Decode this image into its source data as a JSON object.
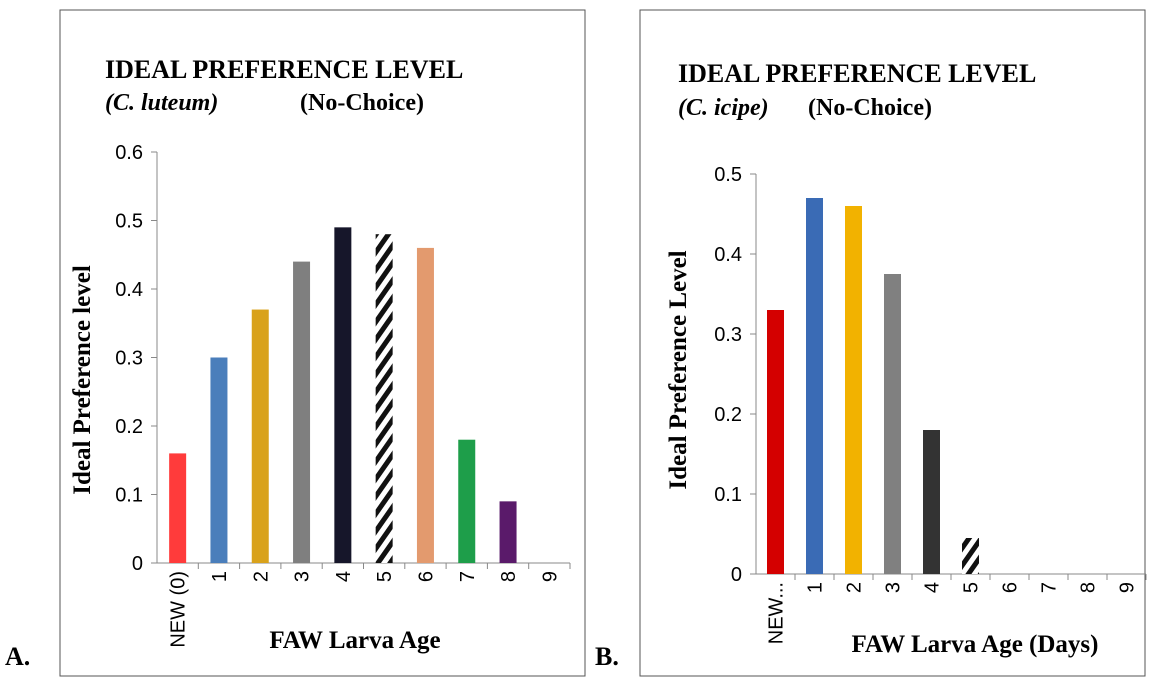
{
  "chart_data": [
    {
      "type": "bar",
      "panel_label": "A.",
      "title": "IDEAL PREFERENCE LEVEL",
      "species": "(C. luteum)",
      "condition": "(No-Choice)",
      "x_label": "FAW Larva Age",
      "y_label": "Ideal Preference level",
      "categories": [
        "NEW (0)",
        "1",
        "2",
        "3",
        "4",
        "5",
        "6",
        "7",
        "8",
        "9"
      ],
      "values": [
        0.16,
        0.3,
        0.37,
        0.44,
        0.49,
        0.48,
        0.46,
        0.18,
        0.09,
        0
      ],
      "colors": [
        "#ff3b3b",
        "#4a7ebb",
        "#d9a21b",
        "#7f7f7f",
        "#16162a",
        "hatch",
        "#e39a6e",
        "#1e9e4a",
        "#5a1a6a",
        "#999999"
      ],
      "ylim": [
        0,
        0.6
      ],
      "yticks": [
        0,
        0.1,
        0.2,
        0.3,
        0.4,
        0.5,
        0.6
      ],
      "grid": false
    },
    {
      "type": "bar",
      "panel_label": "B.",
      "title": "IDEAL PREFERENCE LEVEL",
      "species": "(C. icipe)",
      "condition": "(No-Choice)",
      "x_label": "FAW Larva Age (Days)",
      "y_label": "Ideal Preference Level",
      "categories": [
        "NEW...",
        "1",
        "2",
        "3",
        "4",
        "5",
        "6",
        "7",
        "8",
        "9"
      ],
      "values": [
        0.33,
        0.47,
        0.46,
        0.375,
        0.18,
        0.045,
        0,
        0,
        0,
        0
      ],
      "colors": [
        "#d40000",
        "#3a6bb5",
        "#f2b200",
        "#808080",
        "#333333",
        "hatch",
        "#999999",
        "#999999",
        "#999999",
        "#999999"
      ],
      "ylim": [
        0,
        0.5
      ],
      "yticks": [
        0,
        0.1,
        0.2,
        0.3,
        0.4,
        0.5
      ],
      "grid": false
    }
  ]
}
